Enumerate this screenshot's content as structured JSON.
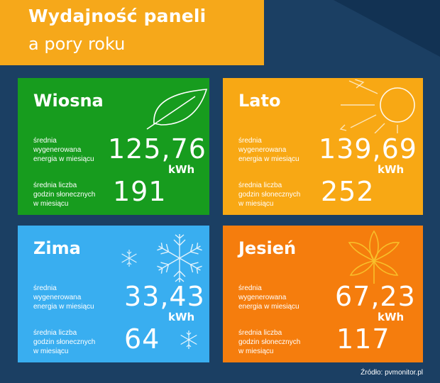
{
  "header": {
    "title": "Wydajność paneli",
    "subtitle": "a pory roku"
  },
  "colors": {
    "background": "#1b3f63",
    "header": "#f6a81a",
    "spring": "#179c1e",
    "summer": "#f8a814",
    "winter": "#39aef0",
    "autumn": "#f57d0d"
  },
  "cards": {
    "spring": {
      "season": "Wiosna",
      "energy_label_1": "średnia",
      "energy_label_2": "wygenerowana",
      "energy_label_3": "energia w miesiącu",
      "energy_value": "125,76",
      "energy_unit": "kWh",
      "hours_label_1": "średnia liczba",
      "hours_label_2": "godzin słonecznych",
      "hours_label_3": "w miesiącu",
      "hours_value": "191",
      "icon": "leaf-icon"
    },
    "summer": {
      "season": "Lato",
      "energy_label_1": "średnia",
      "energy_label_2": "wygenerowana",
      "energy_label_3": "energia w miesiącu",
      "energy_value": "139,69",
      "energy_unit": "kWh",
      "hours_label_1": "średnia liczba",
      "hours_label_2": "godzin słonecznych",
      "hours_label_3": "w miesiącu",
      "hours_value": "252",
      "icon": "sun-icon"
    },
    "winter": {
      "season": "Zima",
      "energy_label_1": "średnia",
      "energy_label_2": "wygenerowana",
      "energy_label_3": "energia w miesiącu",
      "energy_value": "33,43",
      "energy_unit": "kWh",
      "hours_label_1": "średnia liczba",
      "hours_label_2": "godzin słonecznych",
      "hours_label_3": "w miesiącu",
      "hours_value": "64",
      "icon": "snowflake-icon"
    },
    "autumn": {
      "season": "Jesień",
      "energy_label_1": "średnia",
      "energy_label_2": "wygenerowana",
      "energy_label_3": "energia w miesiącu",
      "energy_value": "67,23",
      "energy_unit": "kWh",
      "hours_label_1": "średnia liczba",
      "hours_label_2": "godzin słonecznych",
      "hours_label_3": "w miesiącu",
      "hours_value": "117",
      "icon": "chestnut-leaf-icon"
    }
  },
  "footer": {
    "source": "Źródło: pvmonitor.pl"
  }
}
